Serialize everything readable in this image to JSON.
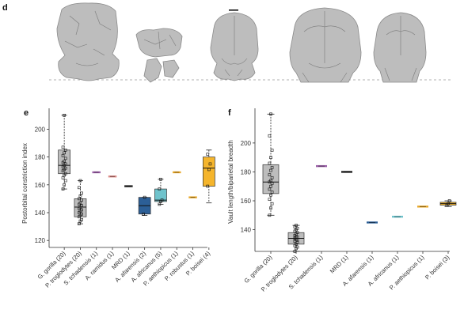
{
  "panel_letters": {
    "d": "d",
    "e": "e",
    "f": "f"
  },
  "chart_data": [
    {
      "panel": "e",
      "type": "box",
      "title": "",
      "ylabel": "Postorbital constriction index",
      "ylim": [
        115,
        215
      ],
      "yticks": [
        120,
        140,
        160,
        180,
        200
      ],
      "categories": [
        "G. gorilla (20)",
        "P. troglodytes (20)",
        "S. tchadensis (1)",
        "A. ramidus (1)",
        "MRD (1)",
        "A. afarensis (2)",
        "A. africanus (5)",
        "P. aethiopicus (1)",
        "P. robustus (1)",
        "P. boisei (4)"
      ],
      "colors": [
        "#bdbdbd",
        "#bdbdbd",
        "#9b5fa8",
        "#d98a86",
        "#222222",
        "#2c5f97",
        "#6fc3cc",
        "#e8a82a",
        "#e8a82a",
        "#f5b52c"
      ],
      "boxes": [
        {
          "min": 157,
          "q1": 168,
          "median": 174,
          "q3": 185,
          "max": 210,
          "points": [
            157,
            160,
            163,
            165,
            167,
            168,
            170,
            171,
            172,
            173,
            174,
            175,
            176,
            177,
            179,
            181,
            183,
            185,
            187,
            210
          ]
        },
        {
          "min": 132,
          "q1": 137,
          "median": 144,
          "q3": 150,
          "max": 163,
          "points": [
            132,
            134,
            135,
            137,
            138,
            139,
            140,
            141,
            142,
            143,
            144,
            145,
            146,
            147,
            149,
            150,
            152,
            154,
            158,
            163
          ]
        },
        {
          "value": 169
        },
        {
          "value": 166
        },
        {
          "value": 159
        },
        {
          "min": 138,
          "q1": 139,
          "median": 145,
          "q3": 151,
          "max": 151,
          "points": [
            139,
            151
          ]
        },
        {
          "min": 146,
          "q1": 148,
          "median": 149,
          "q3": 157,
          "max": 164,
          "points": [
            146,
            148,
            149,
            157,
            164
          ]
        },
        {
          "value": 169
        },
        {
          "value": 151
        },
        {
          "min": 147,
          "q1": 159,
          "median": 172,
          "q3": 180,
          "max": 185,
          "points": [
            159,
            171,
            175,
            182
          ]
        }
      ]
    },
    {
      "panel": "f",
      "type": "box",
      "title": "",
      "ylabel": "Vault length/biparietal breadth",
      "ylim": [
        125,
        224
      ],
      "yticks": [
        140,
        160,
        180,
        200
      ],
      "categories": [
        "G. gorilla (20)",
        "P. troglodytes (20)",
        "S. tchadensis (1)",
        "MRD (1)",
        "A. afarensis (1)",
        "A. africanus (1)",
        "P. aethiopicus (1)",
        "P. boisei (3)"
      ],
      "colors": [
        "#bdbdbd",
        "#bdbdbd",
        "#9b5fa8",
        "#222222",
        "#2c5f97",
        "#6fc3cc",
        "#e8a82a",
        "#f5b52c"
      ],
      "boxes": [
        {
          "min": 150,
          "q1": 165,
          "median": 173,
          "q3": 185,
          "max": 220,
          "points": [
            150,
            155,
            158,
            161,
            164,
            166,
            168,
            170,
            172,
            173,
            174,
            176,
            178,
            181,
            183,
            186,
            190,
            195,
            205,
            220
          ]
        },
        {
          "min": 125,
          "q1": 130,
          "median": 134,
          "q3": 138,
          "max": 143,
          "points": [
            125,
            127,
            128,
            129,
            130,
            131,
            132,
            133,
            133,
            134,
            135,
            135,
            136,
            137,
            138,
            139,
            140,
            141,
            142,
            143
          ]
        },
        {
          "value": 184
        },
        {
          "value": 180
        },
        {
          "value": 145
        },
        {
          "value": 149
        },
        {
          "value": 156
        },
        {
          "min": 156,
          "q1": 157,
          "median": 158,
          "q3": 159,
          "max": 160,
          "points": [
            157,
            158,
            160
          ]
        }
      ]
    }
  ]
}
